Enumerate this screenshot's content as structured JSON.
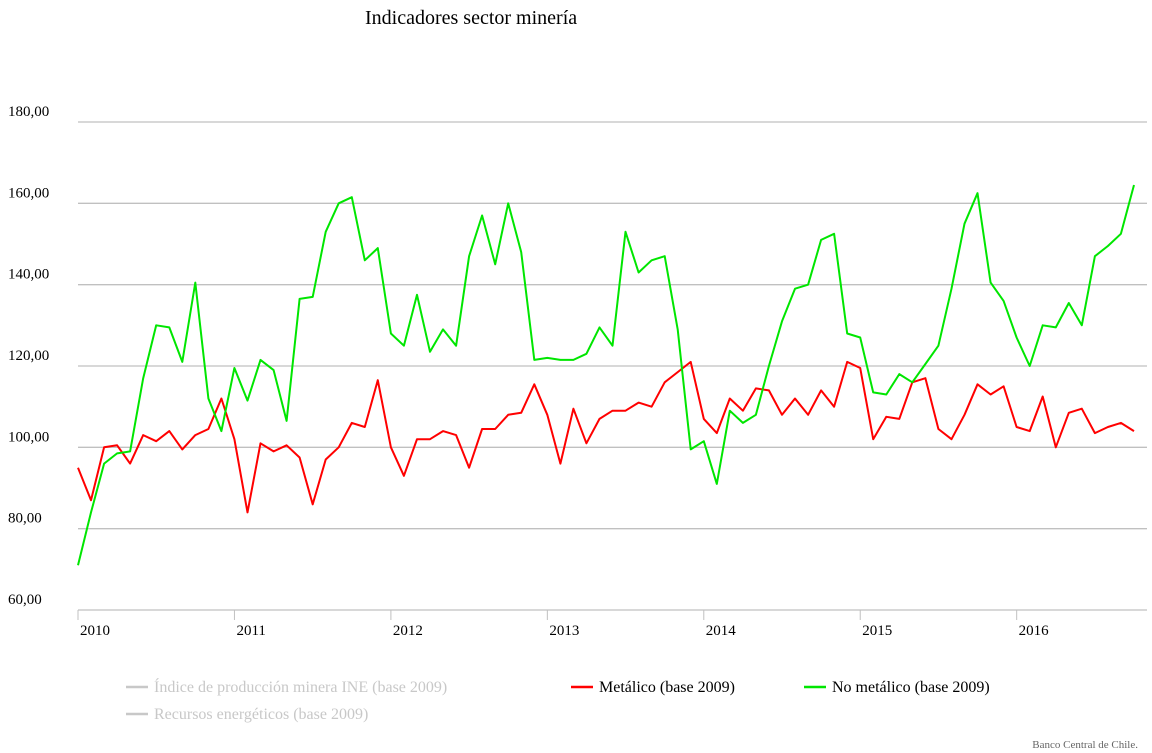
{
  "chart_data": {
    "type": "line",
    "title": "Indicadores sector minería",
    "xlabel": "",
    "ylabel": "",
    "ylim": [
      60,
      180
    ],
    "yticks": [
      "60,00",
      "80,00",
      "100,00",
      "120,00",
      "140,00",
      "160,00",
      "180,00"
    ],
    "xlim": [
      2010,
      2016.833
    ],
    "xticks": [
      {
        "label": "2010",
        "value": 2010
      },
      {
        "label": "2011",
        "value": 2011
      },
      {
        "label": "2012",
        "value": 2012
      },
      {
        "label": "2013",
        "value": 2013
      },
      {
        "label": "2014",
        "value": 2014
      },
      {
        "label": "2015",
        "value": 2015
      },
      {
        "label": "2016",
        "value": 2016
      }
    ],
    "grid": true,
    "legend_position": "bottom",
    "credit": "Banco Central de Chile.",
    "x_start": 2010,
    "x_step": 0.08333,
    "series": [
      {
        "name": "Índice de producción minera INE (base 2009)",
        "color": "#c8c8c8",
        "visible": false,
        "values": []
      },
      {
        "name": "Recursos energéticos (base 2009)",
        "color": "#c8c8c8",
        "visible": false,
        "values": []
      },
      {
        "name": "Metálico (base 2009)",
        "color": "#ff0000",
        "visible": true,
        "values": [
          95.0,
          87.0,
          100.0,
          100.5,
          96.0,
          103.0,
          101.5,
          104.0,
          99.5,
          103.0,
          104.5,
          112.0,
          102.0,
          84.0,
          101.0,
          99.0,
          100.5,
          97.5,
          86.0,
          97.0,
          100.0,
          106.0,
          105.0,
          116.5,
          100.0,
          93.0,
          102.0,
          102.0,
          104.0,
          103.0,
          95.0,
          104.5,
          104.5,
          108.0,
          108.5,
          115.5,
          108.0,
          96.0,
          109.5,
          101.0,
          107.0,
          109.0,
          109.0,
          111.0,
          110.0,
          116.0,
          118.5,
          121.0,
          107.0,
          103.5,
          112.0,
          109.0,
          114.5,
          114.0,
          108.0,
          112.0,
          108.0,
          114.0,
          110.0,
          121.0,
          119.5,
          102.0,
          107.5,
          107.0,
          116.0,
          117.0,
          104.5,
          102.0,
          108.0,
          115.5,
          113.0,
          115.0,
          105.0,
          104.0,
          112.5,
          100.0,
          108.5,
          109.5,
          103.5,
          105.0,
          106.0,
          104.0
        ]
      },
      {
        "name": "No metálico (base 2009)",
        "color": "#00e600",
        "visible": true,
        "values": [
          71.0,
          84.0,
          96.0,
          98.5,
          99.0,
          117.0,
          130.0,
          129.5,
          121.0,
          140.5,
          112.0,
          104.0,
          119.5,
          111.5,
          121.5,
          119.0,
          106.5,
          136.5,
          137.0,
          153.0,
          160.0,
          161.5,
          146.0,
          149.0,
          128.0,
          125.0,
          137.5,
          123.5,
          129.0,
          125.0,
          147.0,
          157.0,
          145.0,
          160.0,
          148.0,
          121.5,
          122.0,
          121.5,
          121.5,
          123.0,
          129.5,
          125.0,
          153.0,
          143.0,
          146.0,
          147.0,
          129.0,
          99.5,
          101.5,
          91.0,
          109.0,
          106.0,
          108.0,
          120.0,
          131.0,
          139.0,
          140.0,
          151.0,
          152.5,
          128.0,
          127.0,
          113.5,
          113.0,
          118.0,
          116.0,
          120.5,
          125.0,
          139.0,
          155.0,
          162.5,
          140.5,
          136.0,
          127.0,
          120.0,
          130.0,
          129.5,
          135.5,
          130.0,
          147.0,
          149.5,
          152.5,
          164.5
        ]
      }
    ]
  }
}
